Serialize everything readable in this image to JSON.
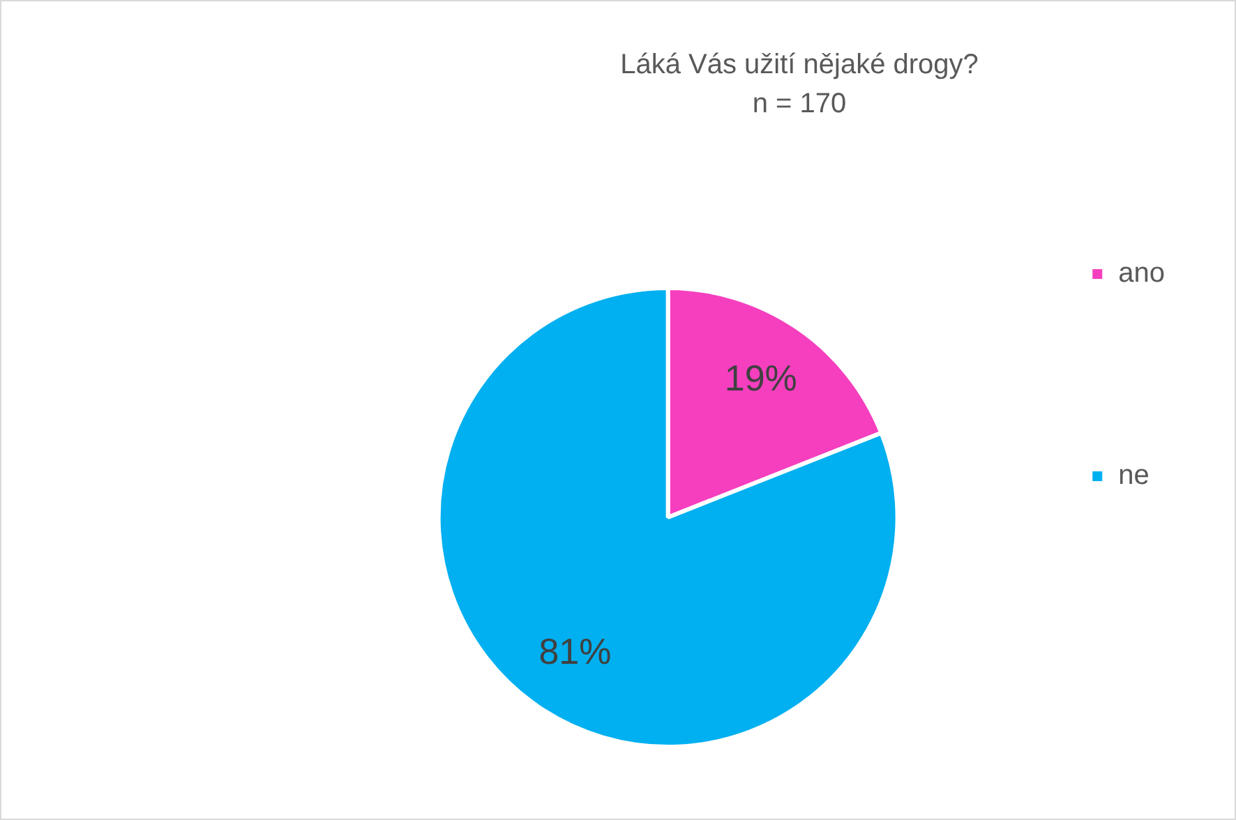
{
  "chart_data": {
    "type": "pie",
    "title": "Láká Vás užití nějaké drogy?",
    "subtitle": "n = 170",
    "categories": [
      "ano",
      "ne"
    ],
    "values": [
      19,
      81
    ],
    "colors": [
      "#f53fbf",
      "#00b0f0"
    ],
    "value_labels": [
      "19%",
      "81%"
    ],
    "legend": "right"
  }
}
